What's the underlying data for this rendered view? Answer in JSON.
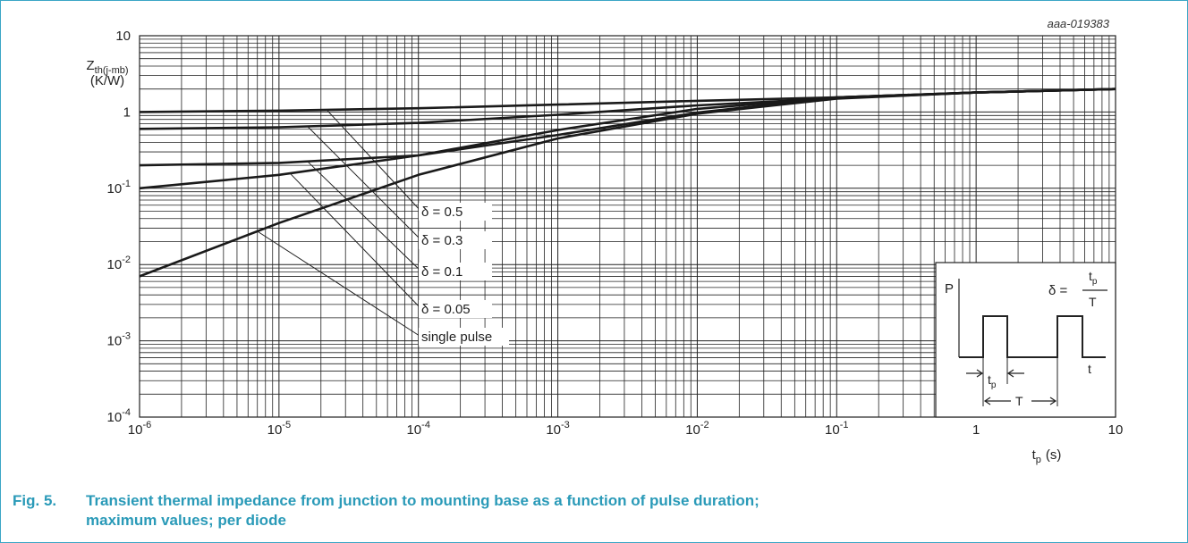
{
  "figure_id": "aaa-019383",
  "caption": {
    "number": "Fig. 5.",
    "line1": "Transient thermal impedance from junction to mounting base as a function of pulse duration;",
    "line2": "maximum values; per diode"
  },
  "colors": {
    "caption": "#2a9ab8",
    "frame": "#3aa6c6",
    "curve": "#1a1a1a",
    "grid": "#222222"
  },
  "chart_data": {
    "type": "line",
    "x_scale": "log",
    "y_scale": "log",
    "xlim": [
      1e-06,
      10
    ],
    "ylim": [
      0.0001,
      10
    ],
    "grid": true,
    "ylabel": {
      "main": "Z",
      "sub": "th(j-mb)",
      "unit": "(K/W)"
    },
    "xlabel": {
      "main": "t",
      "sub": "p",
      "unit": "(s)"
    },
    "x_ticks": [
      {
        "value": 1e-06,
        "base": "10",
        "exp": "-6"
      },
      {
        "value": 1e-05,
        "base": "10",
        "exp": "-5"
      },
      {
        "value": 0.0001,
        "base": "10",
        "exp": "-4"
      },
      {
        "value": 0.001,
        "base": "10",
        "exp": "-3"
      },
      {
        "value": 0.01,
        "base": "10",
        "exp": "-2"
      },
      {
        "value": 0.1,
        "base": "10",
        "exp": "-1"
      },
      {
        "value": 1,
        "base": "1",
        "exp": ""
      },
      {
        "value": 10,
        "base": "10",
        "exp": ""
      }
    ],
    "y_ticks": [
      {
        "value": 10,
        "base": "10",
        "exp": ""
      },
      {
        "value": 1,
        "base": "1",
        "exp": ""
      },
      {
        "value": 0.1,
        "base": "10",
        "exp": "-1"
      },
      {
        "value": 0.01,
        "base": "10",
        "exp": "-2"
      },
      {
        "value": 0.001,
        "base": "10",
        "exp": "-3"
      },
      {
        "value": 0.0001,
        "base": "10",
        "exp": "-4"
      }
    ],
    "series": [
      {
        "name": "δ = 0.5",
        "x": [
          1e-06,
          1e-05,
          0.0001,
          0.001,
          0.01,
          0.1,
          1,
          10
        ],
        "y": [
          1.0,
          1.04,
          1.12,
          1.25,
          1.4,
          1.55,
          1.8,
          2.0
        ],
        "label_anchor_x": 2.2e-05
      },
      {
        "name": "δ = 0.3",
        "x": [
          1e-06,
          1e-05,
          0.0001,
          0.001,
          0.01,
          0.1,
          1,
          10
        ],
        "y": [
          0.6,
          0.63,
          0.72,
          0.92,
          1.22,
          1.52,
          1.8,
          2.0
        ],
        "label_anchor_x": 1.6e-05
      },
      {
        "name": "δ = 0.1",
        "x": [
          1e-06,
          1e-05,
          0.0001,
          0.001,
          0.01,
          0.1,
          1,
          10
        ],
        "y": [
          0.2,
          0.215,
          0.27,
          0.5,
          0.98,
          1.55,
          1.8,
          2.0
        ],
        "label_anchor_x": 1.6e-05
      },
      {
        "name": "δ = 0.05",
        "x": [
          1e-06,
          1e-05,
          0.0001,
          0.001,
          0.01,
          0.1,
          1,
          10
        ],
        "y": [
          0.1,
          0.15,
          0.27,
          0.58,
          1.1,
          1.55,
          1.8,
          2.0
        ],
        "label_anchor_x": 1.2e-05
      },
      {
        "name": "single pulse",
        "x": [
          1e-06,
          1e-05,
          3e-05,
          0.0001,
          0.001,
          0.01,
          0.1,
          1,
          10
        ],
        "y": [
          0.007,
          0.035,
          0.07,
          0.15,
          0.45,
          0.95,
          1.5,
          1.8,
          2.0
        ],
        "label_anchor_x": 7e-06
      }
    ],
    "series_labels": [
      "δ = 0.5",
      "δ = 0.3",
      "δ = 0.1",
      "δ = 0.05",
      "single pulse"
    ]
  },
  "inset": {
    "p_label": "P",
    "delta_lhs": "δ =",
    "frac_num_main": "t",
    "frac_num_sub": "p",
    "frac_den": "T",
    "t_axis": "t",
    "tp_main": "t",
    "tp_sub": "p",
    "period": "T"
  }
}
